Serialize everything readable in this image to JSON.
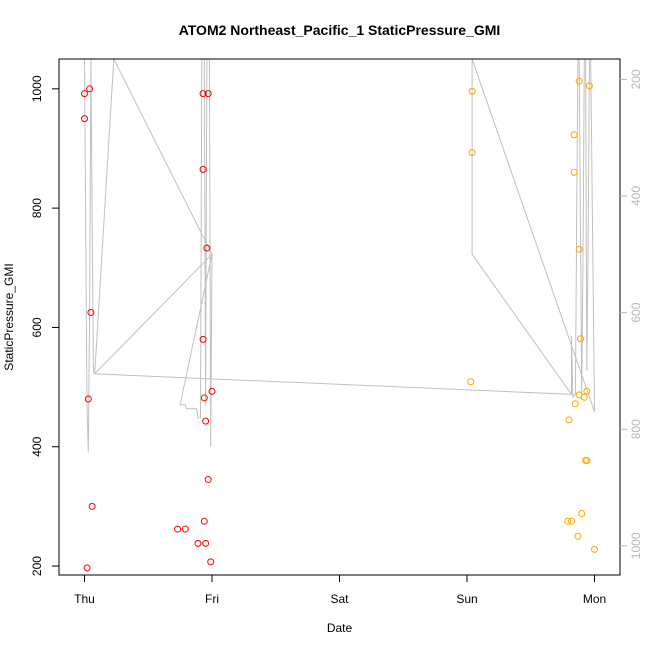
{
  "chart_data": {
    "type": "scatter",
    "title": "ATOM2 Northeast_Pacific_1 StaticPressure_GMI",
    "xlabel": "Date",
    "ylabel": "StaticPressure_GMI",
    "x_unit": "days from Thursday 00:00",
    "xlim": [
      -0.2,
      4.2
    ],
    "x_ticks": [
      {
        "value": 0,
        "label": "Thu"
      },
      {
        "value": 1,
        "label": "Fri"
      },
      {
        "value": 2,
        "label": "Sat"
      },
      {
        "value": 3,
        "label": "Sun"
      },
      {
        "value": 4,
        "label": "Mon"
      }
    ],
    "ylim": [
      185,
      1050
    ],
    "y_ticks": [
      200,
      400,
      600,
      800,
      1000
    ],
    "secondary_axis": {
      "ylim": [
        1050,
        165
      ],
      "ticks": [
        200,
        400,
        600,
        800,
        1000
      ],
      "color": "#b8b8b8"
    },
    "grid": false,
    "colors": {
      "red": "#ff0000",
      "orange": "#ffa500",
      "line": "#c0c0c0"
    },
    "series": [
      {
        "color": "#ff0000",
        "points": [
          {
            "x": 0.0,
            "y": 992
          },
          {
            "x": 0.0,
            "y": 950
          },
          {
            "x": 0.04,
            "y": 1000
          },
          {
            "x": 0.05,
            "y": 625
          },
          {
            "x": 0.03,
            "y": 480
          },
          {
            "x": 0.06,
            "y": 300
          },
          {
            "x": 0.02,
            "y": 197
          },
          {
            "x": 0.93,
            "y": 992
          },
          {
            "x": 0.97,
            "y": 992
          },
          {
            "x": 0.93,
            "y": 865
          },
          {
            "x": 0.96,
            "y": 733
          },
          {
            "x": 0.93,
            "y": 580
          },
          {
            "x": 0.94,
            "y": 482
          },
          {
            "x": 1.0,
            "y": 493
          },
          {
            "x": 0.95,
            "y": 443
          },
          {
            "x": 0.97,
            "y": 345
          },
          {
            "x": 0.94,
            "y": 275
          },
          {
            "x": 0.73,
            "y": 262
          },
          {
            "x": 0.79,
            "y": 262
          },
          {
            "x": 0.89,
            "y": 238
          },
          {
            "x": 0.95,
            "y": 238
          },
          {
            "x": 0.99,
            "y": 207
          }
        ]
      },
      {
        "color": "#ffa500",
        "points": [
          {
            "x": 3.04,
            "y": 996
          },
          {
            "x": 3.04,
            "y": 893
          },
          {
            "x": 3.03,
            "y": 509
          },
          {
            "x": 3.88,
            "y": 1013
          },
          {
            "x": 3.96,
            "y": 1005
          },
          {
            "x": 3.84,
            "y": 923
          },
          {
            "x": 3.84,
            "y": 860
          },
          {
            "x": 3.88,
            "y": 731
          },
          {
            "x": 3.89,
            "y": 581
          },
          {
            "x": 3.88,
            "y": 487
          },
          {
            "x": 3.94,
            "y": 493
          },
          {
            "x": 3.92,
            "y": 483
          },
          {
            "x": 3.85,
            "y": 472
          },
          {
            "x": 3.8,
            "y": 445
          },
          {
            "x": 3.94,
            "y": 377
          },
          {
            "x": 3.93,
            "y": 377
          },
          {
            "x": 3.9,
            "y": 288
          },
          {
            "x": 3.79,
            "y": 275
          },
          {
            "x": 3.82,
            "y": 275
          },
          {
            "x": 3.87,
            "y": 250
          },
          {
            "x": 4.0,
            "y": 228
          }
        ]
      }
    ],
    "line_secondary": [
      [
        -0.02,
        165
      ],
      [
        0.0,
        165
      ],
      [
        0.02,
        760
      ],
      [
        0.03,
        840
      ],
      [
        0.04,
        600
      ],
      [
        0.05,
        165
      ],
      [
        0.07,
        700
      ],
      [
        0.08,
        705
      ],
      [
        0.23,
        165
      ],
      [
        0.23,
        165
      ],
      [
        1.0,
        500
      ],
      [
        0.75,
        758
      ],
      [
        0.79,
        758
      ],
      [
        0.8,
        765
      ],
      [
        0.88,
        765
      ],
      [
        0.89,
        780
      ],
      [
        0.91,
        780
      ],
      [
        0.92,
        165
      ],
      [
        0.94,
        165
      ],
      [
        0.95,
        760
      ],
      [
        0.96,
        165
      ],
      [
        0.98,
        165
      ],
      [
        0.99,
        830
      ],
      [
        1.0,
        500
      ],
      [
        0.08,
        705
      ],
      [
        3.82,
        740
      ],
      [
        3.82,
        640
      ],
      [
        3.83,
        745
      ],
      [
        3.85,
        740
      ],
      [
        3.87,
        165
      ],
      [
        3.88,
        165
      ],
      [
        3.9,
        740
      ],
      [
        3.91,
        500
      ],
      [
        3.92,
        165
      ],
      [
        3.93,
        165
      ],
      [
        3.94,
        700
      ],
      [
        3.95,
        490
      ],
      [
        3.96,
        165
      ],
      [
        3.97,
        165
      ],
      [
        4.0,
        770
      ],
      [
        3.04,
        165
      ],
      [
        3.04,
        500
      ],
      [
        3.82,
        740
      ]
    ]
  }
}
